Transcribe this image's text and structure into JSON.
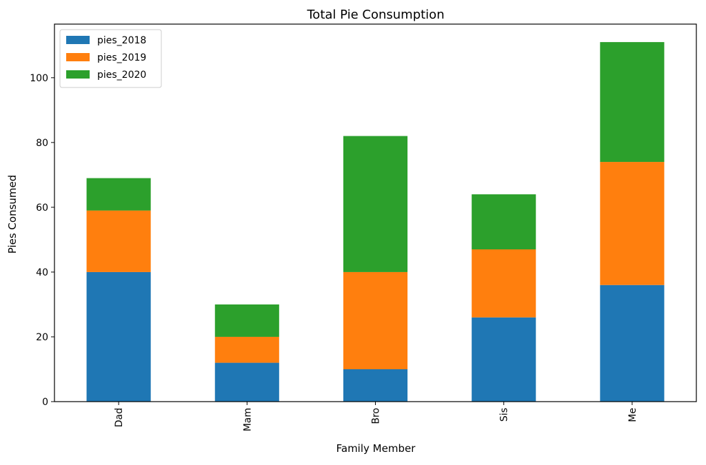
{
  "chart_data": {
    "type": "bar",
    "stacked": true,
    "title": "Total Pie Consumption",
    "xlabel": "Family Member",
    "ylabel": "Pies Consumed",
    "categories": [
      "Dad",
      "Mam",
      "Bro",
      "Sis",
      "Me"
    ],
    "series": [
      {
        "name": "pies_2018",
        "color": "#1f77b4",
        "values": [
          40,
          12,
          10,
          26,
          36
        ]
      },
      {
        "name": "pies_2019",
        "color": "#ff7f0e",
        "values": [
          19,
          8,
          30,
          21,
          38
        ]
      },
      {
        "name": "pies_2020",
        "color": "#2ca02c",
        "values": [
          10,
          10,
          42,
          17,
          37
        ]
      }
    ],
    "ylim": [
      0,
      116.55
    ],
    "yticks": [
      0,
      20,
      40,
      60,
      80,
      100
    ],
    "legend_position": "top-left",
    "grid": false
  }
}
